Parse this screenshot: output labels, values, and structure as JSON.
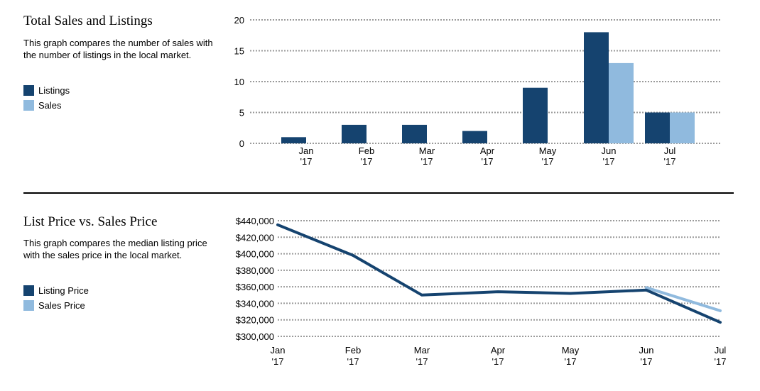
{
  "colors": {
    "listings": "#15436f",
    "sales": "#90bade",
    "grid": "#9a9a9a"
  },
  "chart_data": [
    {
      "type": "bar",
      "title": "Total Sales and Listings",
      "description": "This graph compares the number of sales with the number of listings in the local market.",
      "categories": [
        [
          "Jan",
          "'17"
        ],
        [
          "Feb",
          "'17"
        ],
        [
          "Mar",
          "'17"
        ],
        [
          "Apr",
          "'17"
        ],
        [
          "May",
          "'17"
        ],
        [
          "Jun",
          "'17"
        ],
        [
          "Jul",
          "'17"
        ]
      ],
      "series": [
        {
          "name": "Listings",
          "color": "#15436f",
          "values": [
            1,
            3,
            3,
            2,
            9,
            18,
            5
          ]
        },
        {
          "name": "Sales",
          "color": "#90bade",
          "values": [
            0,
            0,
            0,
            0,
            0,
            13,
            5
          ]
        }
      ],
      "ylim": [
        0,
        20
      ],
      "yticks": [
        0,
        5,
        10,
        15,
        20
      ],
      "grid": true,
      "legend": "left"
    },
    {
      "type": "line",
      "title": "List Price vs. Sales Price",
      "description": "This graph compares the median listing price with the sales price in the local market.",
      "categories": [
        [
          "Jan",
          "'17"
        ],
        [
          "Feb",
          "'17"
        ],
        [
          "Mar",
          "'17"
        ],
        [
          "Apr",
          "'17"
        ],
        [
          "May",
          "'17"
        ],
        [
          "Jun",
          "'17"
        ],
        [
          "Jul",
          "'17"
        ]
      ],
      "series": [
        {
          "name": "Listing Price",
          "color": "#15436f",
          "values": [
            435000,
            398000,
            350000,
            354000,
            352000,
            356000,
            317000
          ]
        },
        {
          "name": "Sales Price",
          "color": "#90bade",
          "values": [
            null,
            null,
            null,
            null,
            null,
            359000,
            331000
          ]
        }
      ],
      "ylim": [
        300000,
        440000
      ],
      "yticks": [
        300000,
        320000,
        340000,
        360000,
        380000,
        400000,
        420000,
        440000
      ],
      "ytick_labels": [
        "$300,000",
        "$320,000",
        "$340,000",
        "$360,000",
        "$380,000",
        "$400,000",
        "$420,000",
        "$440,000"
      ],
      "grid": true,
      "legend": "left"
    }
  ]
}
